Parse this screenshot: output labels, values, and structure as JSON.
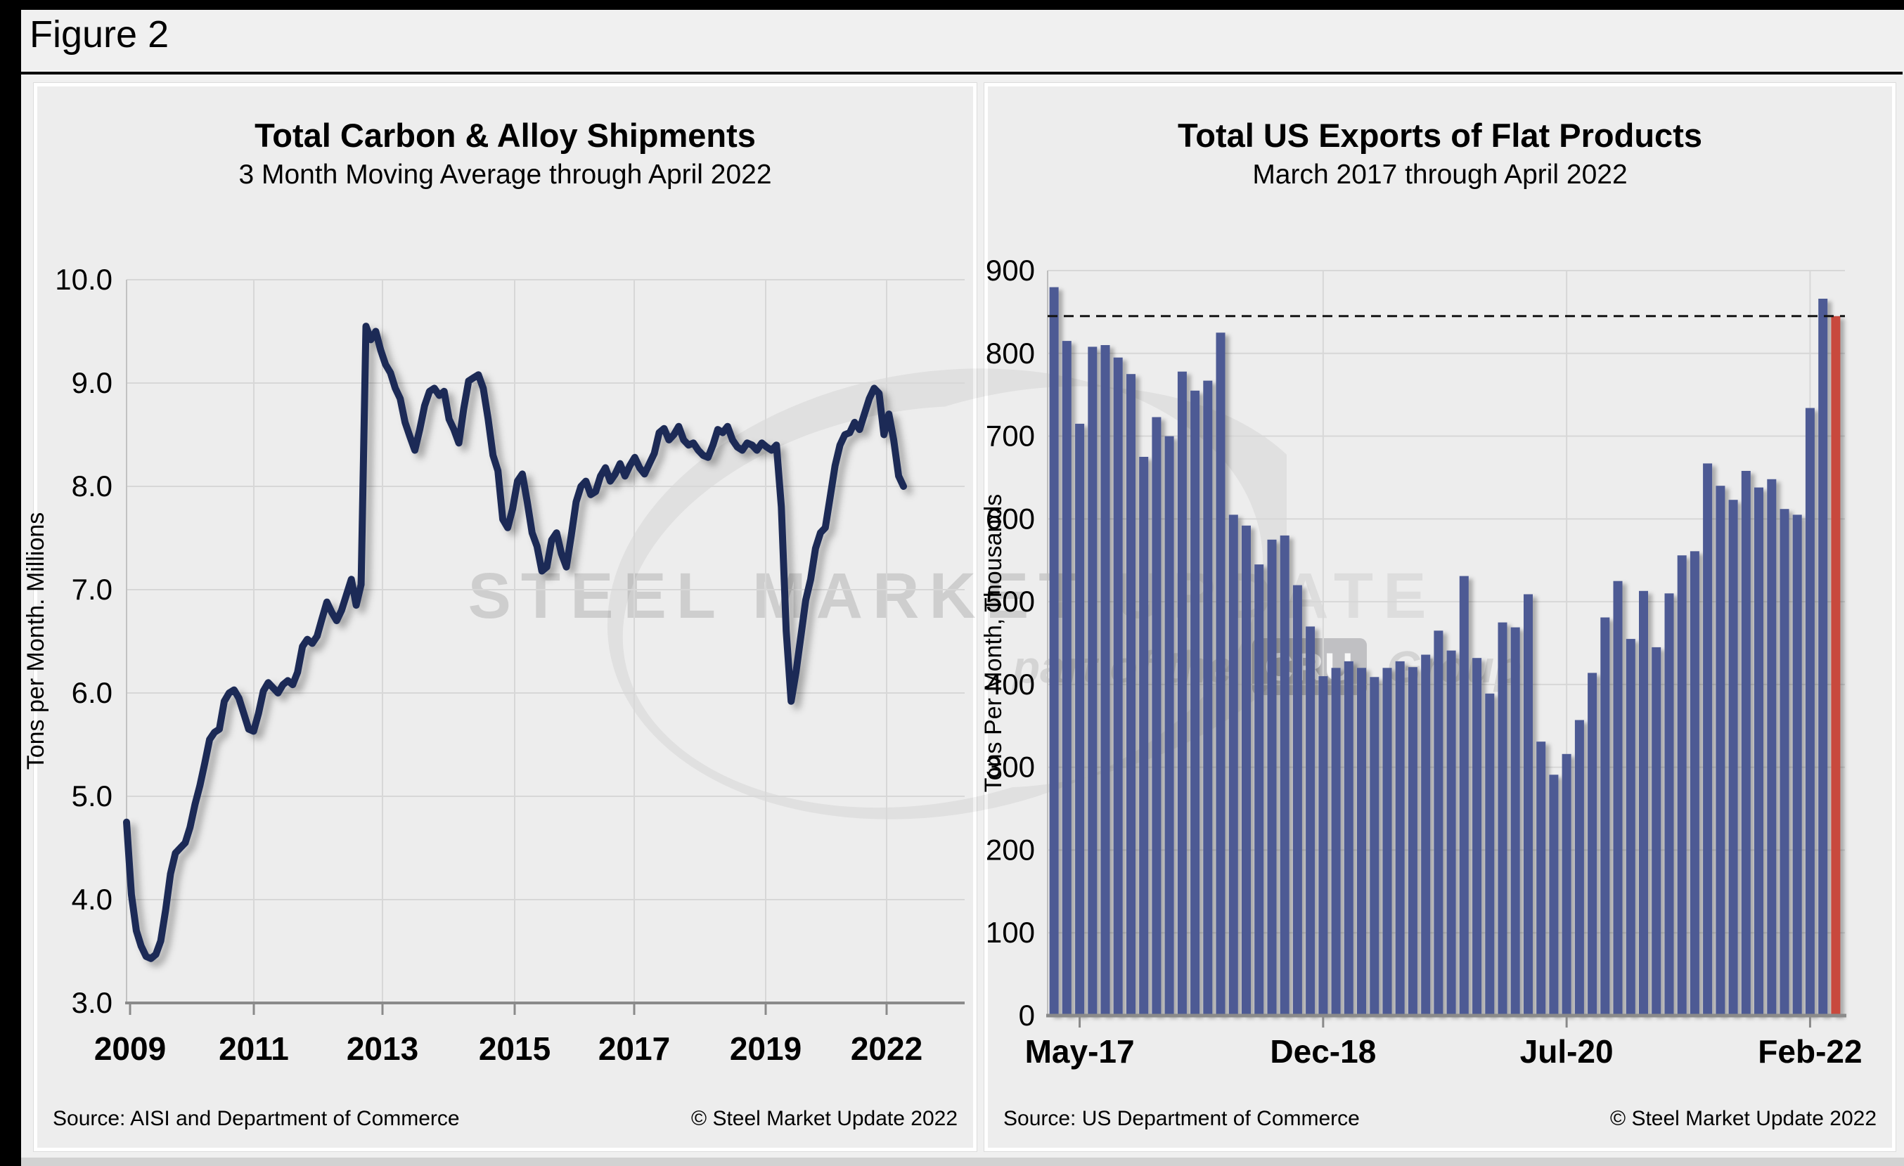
{
  "figure_label": "Figure 2",
  "watermark": {
    "main_dark": "STEEL MARKET",
    "main_light": "UPDATE",
    "part_of": "part of the",
    "cru": "CRU",
    "group": "Group"
  },
  "colors": {
    "line": "#1c2b57",
    "bar": "#4d5a94",
    "bar_highlight": "#c8483c",
    "gridline": "#d7d7d7",
    "axis": "#8a8a8a",
    "reference_line": "#141414",
    "panel_bg": "#ededed"
  },
  "chart_data": [
    {
      "type": "line",
      "title": "Total Carbon & Alloy Shipments",
      "subtitle": "3 Month Moving Average through April 2022",
      "ylabel": "Tons per Month. Millions",
      "xlabel": "",
      "ylim": [
        3.0,
        10.0
      ],
      "ytick_labels": [
        "3.0",
        "4.0",
        "5.0",
        "6.0",
        "7.0",
        "8.0",
        "9.0",
        "10.0"
      ],
      "x_start": "Jan-2009",
      "x_end": "Apr-2022",
      "x_tick_labels": [
        "2009",
        "2011",
        "2013",
        "2015",
        "2017",
        "2019",
        "2022"
      ],
      "grid": "on",
      "source": "Source: AISI and Department of Commerce",
      "copyright": "© Steel Market Update 2022",
      "values": [
        4.75,
        4.05,
        3.7,
        3.55,
        3.45,
        3.43,
        3.47,
        3.6,
        3.9,
        4.25,
        4.45,
        4.5,
        4.55,
        4.7,
        4.92,
        5.1,
        5.32,
        5.55,
        5.62,
        5.65,
        5.92,
        6.0,
        6.03,
        5.95,
        5.8,
        5.65,
        5.63,
        5.8,
        6.02,
        6.1,
        6.05,
        6.0,
        6.08,
        6.12,
        6.08,
        6.2,
        6.45,
        6.52,
        6.48,
        6.55,
        6.72,
        6.88,
        6.78,
        6.7,
        6.8,
        6.95,
        7.1,
        6.85,
        7.05,
        9.55,
        9.42,
        9.5,
        9.32,
        9.18,
        9.1,
        8.95,
        8.85,
        8.62,
        8.48,
        8.35,
        8.55,
        8.78,
        8.92,
        8.95,
        8.88,
        8.92,
        8.65,
        8.55,
        8.42,
        8.75,
        9.02,
        9.05,
        9.08,
        8.95,
        8.65,
        8.3,
        8.15,
        7.68,
        7.6,
        7.78,
        8.05,
        8.12,
        7.85,
        7.55,
        7.42,
        7.18,
        7.22,
        7.48,
        7.55,
        7.35,
        7.22,
        7.52,
        7.85,
        8.0,
        8.05,
        7.92,
        7.95,
        8.1,
        8.18,
        8.05,
        8.12,
        8.22,
        8.1,
        8.2,
        8.28,
        8.18,
        8.12,
        8.22,
        8.32,
        8.52,
        8.56,
        8.45,
        8.5,
        8.58,
        8.45,
        8.4,
        8.42,
        8.35,
        8.3,
        8.28,
        8.4,
        8.55,
        8.52,
        8.58,
        8.45,
        8.38,
        8.35,
        8.42,
        8.4,
        8.35,
        8.42,
        8.38,
        8.35,
        8.4,
        7.8,
        6.6,
        5.92,
        6.2,
        6.55,
        6.9,
        7.1,
        7.4,
        7.55,
        7.6,
        7.9,
        8.2,
        8.4,
        8.5,
        8.52,
        8.62,
        8.55,
        8.7,
        8.85,
        8.95,
        8.9,
        8.5,
        8.7,
        8.45,
        8.1,
        8.0
      ]
    },
    {
      "type": "bar",
      "title": "Total US Exports of Flat Products",
      "subtitle": "March 2017 through April 2022",
      "ylabel": "Tons Per Month, Thousands",
      "xlabel": "",
      "ylim": [
        0,
        900
      ],
      "ytick_labels": [
        "0",
        "100",
        "200",
        "300",
        "400",
        "500",
        "600",
        "700",
        "800",
        "900"
      ],
      "x_tick_labels": [
        "May-17",
        "Dec-18",
        "Jul-20",
        "Feb-22"
      ],
      "x_tick_indices": [
        2,
        21,
        40,
        59
      ],
      "reference_line_value": 845,
      "highlight_last_bar": true,
      "grid": "on",
      "source": "Source: US Department of Commerce",
      "copyright": "© Steel Market Update 2022",
      "categories": [
        "Mar-17",
        "Apr-17",
        "May-17",
        "Jun-17",
        "Jul-17",
        "Aug-17",
        "Sep-17",
        "Oct-17",
        "Nov-17",
        "Dec-17",
        "Jan-18",
        "Feb-18",
        "Mar-18",
        "Apr-18",
        "May-18",
        "Jun-18",
        "Jul-18",
        "Aug-18",
        "Sep-18",
        "Oct-18",
        "Nov-18",
        "Dec-18",
        "Jan-19",
        "Feb-19",
        "Mar-19",
        "Apr-19",
        "May-19",
        "Jun-19",
        "Jul-19",
        "Aug-19",
        "Sep-19",
        "Oct-19",
        "Nov-19",
        "Dec-19",
        "Jan-20",
        "Feb-20",
        "Mar-20",
        "Apr-20",
        "May-20",
        "Jun-20",
        "Jul-20",
        "Aug-20",
        "Sep-20",
        "Oct-20",
        "Nov-20",
        "Dec-20",
        "Jan-21",
        "Feb-21",
        "Mar-21",
        "Apr-21",
        "May-21",
        "Jun-21",
        "Jul-21",
        "Aug-21",
        "Sep-21",
        "Oct-21",
        "Nov-21",
        "Dec-21",
        "Jan-22",
        "Feb-22",
        "Mar-22",
        "Apr-22"
      ],
      "values": [
        880,
        815,
        715,
        808,
        810,
        795,
        775,
        675,
        723,
        700,
        778,
        755,
        767,
        825,
        605,
        592,
        545,
        575,
        580,
        520,
        470,
        410,
        420,
        428,
        420,
        409,
        420,
        428,
        421,
        436,
        465,
        441,
        531,
        432,
        389,
        475,
        469,
        509,
        331,
        291,
        316,
        357,
        414,
        481,
        525,
        455,
        513,
        445,
        510,
        556,
        561,
        667,
        640,
        623,
        658,
        638,
        648,
        612,
        605,
        734,
        866,
        845
      ]
    }
  ]
}
